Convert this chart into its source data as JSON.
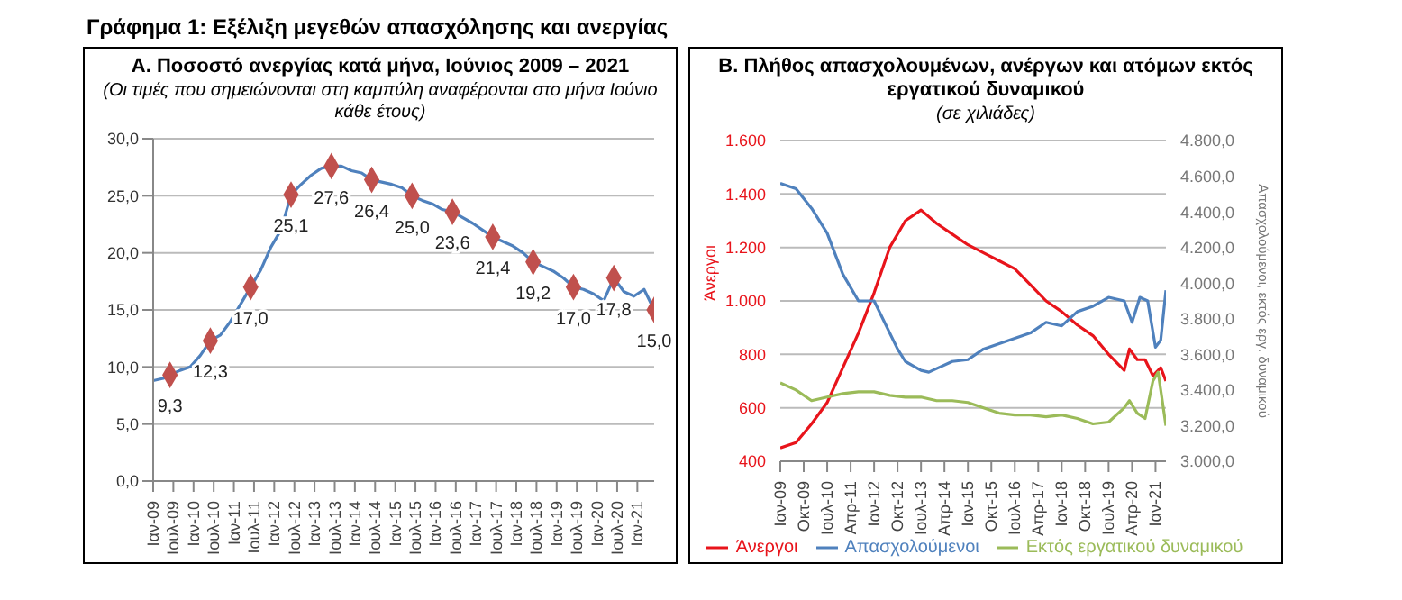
{
  "chart_data": [
    {
      "type": "line",
      "title": "Α. Ποσοστό ανεργίας κατά μήνα, Ιούνιος 2009 – 2021",
      "subtitle": "(Οι τιμές που σημειώνονται στη καμπύλη αναφέρονται στο μήνα Ιούνιο κάθε έτους)",
      "annotations": [
        "Γράφημα 1: Εξέλιξη μεγεθών απασχόλησης και ανεργίας"
      ],
      "xlim": [
        "2009-01",
        "2021-06"
      ],
      "xticks": [
        {
          "value": "2009-01",
          "label": "Ιαν-09"
        },
        {
          "value": "2009-07",
          "label": "Ιουλ-09"
        },
        {
          "value": "2010-01",
          "label": "Ιαν-10"
        },
        {
          "value": "2010-07",
          "label": "Ιουλ-10"
        },
        {
          "value": "2011-01",
          "label": "Ιαν-11"
        },
        {
          "value": "2011-07",
          "label": "Ιουλ-11"
        },
        {
          "value": "2012-01",
          "label": "Ιαν-12"
        },
        {
          "value": "2012-07",
          "label": "Ιουλ-12"
        },
        {
          "value": "2013-01",
          "label": "Ιαν-13"
        },
        {
          "value": "2013-07",
          "label": "Ιουλ-13"
        },
        {
          "value": "2014-01",
          "label": "Ιαν-14"
        },
        {
          "value": "2014-07",
          "label": "Ιουλ-14"
        },
        {
          "value": "2015-01",
          "label": "Ιαν-15"
        },
        {
          "value": "2015-07",
          "label": "Ιουλ-15"
        },
        {
          "value": "2016-01",
          "label": "Ιαν-16"
        },
        {
          "value": "2016-07",
          "label": "Ιουλ-16"
        },
        {
          "value": "2017-01",
          "label": "Ιαν-17"
        },
        {
          "value": "2017-07",
          "label": "Ιουλ-17"
        },
        {
          "value": "2018-01",
          "label": "Ιαν-18"
        },
        {
          "value": "2018-07",
          "label": "Ιουλ-18"
        },
        {
          "value": "2019-01",
          "label": "Ιαν-19"
        },
        {
          "value": "2019-07",
          "label": "Ιουλ-19"
        },
        {
          "value": "2020-01",
          "label": "Ιαν-20"
        },
        {
          "value": "2020-07",
          "label": "Ιουλ-20"
        },
        {
          "value": "2021-01",
          "label": "Ιαν-21"
        }
      ],
      "ylim": [
        0,
        30
      ],
      "yticks": [
        {
          "value": 0,
          "label": "0,0"
        },
        {
          "value": 5,
          "label": "5,0"
        },
        {
          "value": 10,
          "label": "10,0"
        },
        {
          "value": 15,
          "label": "15,0"
        },
        {
          "value": 20,
          "label": "20,0"
        },
        {
          "value": 25,
          "label": "25,0"
        },
        {
          "value": 30,
          "label": "30,0"
        }
      ],
      "grid": "y",
      "legend": false,
      "series": [
        {
          "color": "#4f81bd",
          "x": [
            "2009-01",
            "2009-04",
            "2009-06",
            "2009-09",
            "2009-12",
            "2010-03",
            "2010-06",
            "2010-09",
            "2010-12",
            "2011-03",
            "2011-06",
            "2011-09",
            "2011-12",
            "2012-03",
            "2012-06",
            "2012-09",
            "2012-12",
            "2013-03",
            "2013-06",
            "2013-09",
            "2013-12",
            "2014-03",
            "2014-06",
            "2014-09",
            "2014-12",
            "2015-03",
            "2015-06",
            "2015-09",
            "2015-12",
            "2016-03",
            "2016-06",
            "2016-09",
            "2016-12",
            "2017-03",
            "2017-06",
            "2017-09",
            "2017-12",
            "2018-03",
            "2018-06",
            "2018-09",
            "2018-12",
            "2019-03",
            "2019-06",
            "2019-09",
            "2019-12",
            "2020-03",
            "2020-06",
            "2020-09",
            "2020-12",
            "2021-03",
            "2021-06"
          ],
          "values": [
            8.8,
            9.0,
            9.3,
            9.7,
            10.0,
            11.0,
            12.3,
            12.8,
            14.0,
            15.5,
            17.0,
            18.5,
            20.5,
            22.0,
            25.1,
            26.0,
            26.8,
            27.4,
            27.6,
            27.6,
            27.2,
            27.0,
            26.4,
            26.2,
            26.0,
            25.7,
            25.0,
            24.6,
            24.3,
            23.8,
            23.6,
            23.1,
            22.6,
            22.0,
            21.4,
            21.0,
            20.6,
            20.0,
            19.2,
            18.8,
            18.4,
            17.8,
            17.0,
            16.8,
            16.4,
            15.8,
            17.8,
            16.6,
            16.2,
            16.8,
            15.0
          ]
        },
        {
          "type": "scatter",
          "color": "#c0504d",
          "marker": "diamond",
          "x": [
            "2009-06",
            "2010-06",
            "2011-06",
            "2012-06",
            "2013-06",
            "2014-06",
            "2015-06",
            "2016-06",
            "2017-06",
            "2018-06",
            "2019-06",
            "2020-06",
            "2021-06"
          ],
          "values": [
            9.3,
            12.3,
            17.0,
            25.1,
            27.6,
            26.4,
            25.0,
            23.6,
            21.4,
            19.2,
            17.0,
            17.8,
            15.0
          ],
          "value_labels": [
            "9,3",
            "12,3",
            "17,0",
            "25,1",
            "27,6",
            "26,4",
            "25,0",
            "23,6",
            "21,4",
            "19,2",
            "17,0",
            "17,8",
            "15,0"
          ]
        }
      ]
    },
    {
      "type": "line",
      "title": "Β. Πλήθος απασχολουμένων, ανέργων και ατόμων εκτός εργατικού δυναμικού",
      "subtitle": "(σε χιλιάδες)",
      "ylabel": "Άνεργοι",
      "y2label": "Απασχολούμενοι, εκτός εργ. δυναμικού",
      "xlim": [
        "2009-01",
        "2021-05"
      ],
      "xticks": [
        {
          "value": "2009-01",
          "label": "Ιαν-09"
        },
        {
          "value": "2009-10",
          "label": "Οκτ-09"
        },
        {
          "value": "2010-07",
          "label": "Ιουλ-10"
        },
        {
          "value": "2011-04",
          "label": "Απρ-11"
        },
        {
          "value": "2012-01",
          "label": "Ιαν-12"
        },
        {
          "value": "2012-10",
          "label": "Οκτ-12"
        },
        {
          "value": "2013-07",
          "label": "Ιουλ-13"
        },
        {
          "value": "2014-04",
          "label": "Απρ-14"
        },
        {
          "value": "2015-01",
          "label": "Ιαν-15"
        },
        {
          "value": "2015-10",
          "label": "Οκτ-15"
        },
        {
          "value": "2016-07",
          "label": "Ιουλ-16"
        },
        {
          "value": "2017-04",
          "label": "Απρ-17"
        },
        {
          "value": "2018-01",
          "label": "Ιαν-18"
        },
        {
          "value": "2018-10",
          "label": "Οκτ-18"
        },
        {
          "value": "2019-07",
          "label": "Ιουλ-19"
        },
        {
          "value": "2020-04",
          "label": "Απρ-20"
        },
        {
          "value": "2021-01",
          "label": "Ιαν-21"
        }
      ],
      "ylim": [
        400,
        1600
      ],
      "yticks": [
        {
          "value": 400,
          "label": "400"
        },
        {
          "value": 600,
          "label": "600"
        },
        {
          "value": 800,
          "label": "800"
        },
        {
          "value": 1000,
          "label": "1.000"
        },
        {
          "value": 1200,
          "label": "1.200"
        },
        {
          "value": 1400,
          "label": "1.400"
        },
        {
          "value": 1600,
          "label": "1.600"
        }
      ],
      "y2lim": [
        3000,
        4800
      ],
      "y2ticks": [
        {
          "value": 3000,
          "label": "3.000,0"
        },
        {
          "value": 3200,
          "label": "3.200,0"
        },
        {
          "value": 3400,
          "label": "3.400,0"
        },
        {
          "value": 3600,
          "label": "3.600,0"
        },
        {
          "value": 3800,
          "label": "3.800,0"
        },
        {
          "value": 4000,
          "label": "4.000,0"
        },
        {
          "value": 4200,
          "label": "4.200,0"
        },
        {
          "value": 4400,
          "label": "4.400,0"
        },
        {
          "value": 4600,
          "label": "4.600,0"
        },
        {
          "value": 4800,
          "label": "4.800,0"
        }
      ],
      "grid": "y",
      "legend": "bottom",
      "series": [
        {
          "name": "Άνεργοι",
          "color": "#e8141b",
          "x": [
            "2009-01",
            "2009-07",
            "2010-01",
            "2010-07",
            "2011-01",
            "2011-07",
            "2012-01",
            "2012-07",
            "2013-01",
            "2013-07",
            "2014-01",
            "2014-07",
            "2015-01",
            "2015-07",
            "2016-01",
            "2016-07",
            "2017-01",
            "2017-07",
            "2018-01",
            "2018-07",
            "2019-01",
            "2019-07",
            "2020-01",
            "2020-03",
            "2020-06",
            "2020-09",
            "2020-12",
            "2021-03",
            "2021-05"
          ],
          "values": [
            450,
            470,
            540,
            620,
            750,
            880,
            1030,
            1200,
            1300,
            1340,
            1290,
            1250,
            1210,
            1180,
            1150,
            1120,
            1060,
            1000,
            960,
            910,
            870,
            800,
            740,
            820,
            780,
            780,
            720,
            750,
            700
          ]
        },
        {
          "name": "Απασχολούμενοι",
          "color": "#4f81bd",
          "axis": "y2",
          "x": [
            "2009-01",
            "2009-07",
            "2010-01",
            "2010-07",
            "2011-01",
            "2011-07",
            "2012-01",
            "2012-10",
            "2013-01",
            "2013-07",
            "2013-10",
            "2014-01",
            "2014-07",
            "2015-01",
            "2015-07",
            "2016-01",
            "2016-07",
            "2017-01",
            "2017-07",
            "2018-01",
            "2018-07",
            "2019-01",
            "2019-07",
            "2020-01",
            "2020-04",
            "2020-07",
            "2020-10",
            "2021-01",
            "2021-03",
            "2021-05"
          ],
          "values": [
            4560,
            4530,
            4420,
            4280,
            4050,
            3900,
            3900,
            3630,
            3560,
            3510,
            3500,
            3520,
            3560,
            3570,
            3630,
            3660,
            3690,
            3720,
            3780,
            3760,
            3840,
            3870,
            3920,
            3900,
            3780,
            3920,
            3900,
            3640,
            3680,
            3960
          ]
        },
        {
          "name": "Εκτός εργατικού δυναμικού",
          "color": "#9bbb59",
          "axis": "y2",
          "x": [
            "2009-01",
            "2009-07",
            "2010-01",
            "2010-07",
            "2011-01",
            "2011-07",
            "2012-01",
            "2012-07",
            "2013-01",
            "2013-07",
            "2014-01",
            "2014-07",
            "2015-01",
            "2015-07",
            "2016-01",
            "2016-07",
            "2017-01",
            "2017-07",
            "2018-01",
            "2018-07",
            "2019-01",
            "2019-07",
            "2020-01",
            "2020-03",
            "2020-06",
            "2020-09",
            "2020-12",
            "2021-02",
            "2021-04",
            "2021-05"
          ],
          "values": [
            3440,
            3400,
            3340,
            3360,
            3380,
            3390,
            3390,
            3370,
            3360,
            3360,
            3340,
            3340,
            3330,
            3300,
            3270,
            3260,
            3260,
            3250,
            3260,
            3240,
            3210,
            3220,
            3300,
            3340,
            3270,
            3240,
            3450,
            3500,
            3300,
            3200
          ]
        }
      ]
    }
  ]
}
